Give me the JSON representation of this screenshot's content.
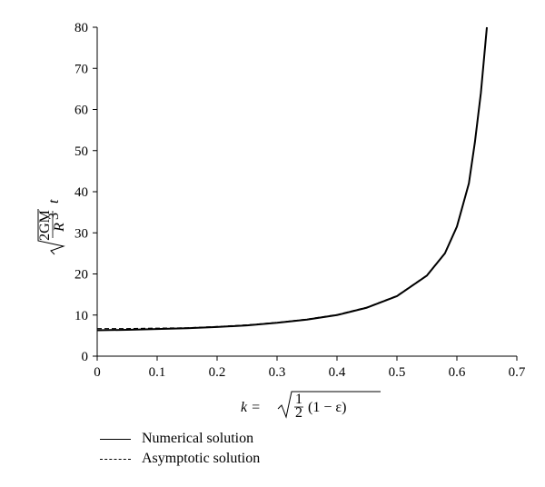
{
  "chart_data": {
    "type": "line",
    "xlabel": "k = √(½ (1 − ε))",
    "xlabel_parts": {
      "lhs": "k = ",
      "frac_num": "1",
      "frac_den": "2",
      "paren": "(1 − ε)"
    },
    "ylabel": "√(2GM/R³) t",
    "ylabel_parts": {
      "num": "2GM",
      "den": "R",
      "den_exp": "3",
      "var": "t"
    },
    "xlim": [
      0,
      0.7
    ],
    "ylim": [
      0,
      80
    ],
    "x_ticks": [
      "0",
      "0.1",
      "0.2",
      "0.3",
      "0.4",
      "0.5",
      "0.6",
      "0.7"
    ],
    "y_ticks": [
      "0",
      "10",
      "20",
      "30",
      "40",
      "50",
      "60",
      "70",
      "80"
    ],
    "grid": false,
    "legend_position": "bottom-left, below plot",
    "series": [
      {
        "name": "Numerical solution",
        "style": "solid",
        "x": [
          0,
          0.05,
          0.1,
          0.15,
          0.2,
          0.25,
          0.3,
          0.35,
          0.4,
          0.45,
          0.5,
          0.55,
          0.58,
          0.6,
          0.62,
          0.63,
          0.64,
          0.65
        ],
        "y": [
          6.3,
          6.4,
          6.6,
          6.8,
          7.1,
          7.5,
          8.1,
          8.9,
          10.0,
          11.8,
          14.6,
          19.6,
          25.0,
          31.5,
          42.0,
          52.0,
          64.0,
          80.0
        ]
      },
      {
        "name": "Asymptotic solution",
        "style": "dashed",
        "x": [
          0,
          0.05,
          0.1,
          0.15,
          0.2,
          0.25,
          0.3,
          0.35,
          0.4,
          0.45,
          0.5,
          0.55,
          0.58,
          0.6,
          0.62,
          0.63,
          0.64,
          0.65
        ],
        "y": [
          6.7,
          6.7,
          6.8,
          6.9,
          7.2,
          7.6,
          8.2,
          9.0,
          10.1,
          11.9,
          14.7,
          19.7,
          25.1,
          31.6,
          42.1,
          52.1,
          64.1,
          80.0
        ]
      }
    ]
  },
  "legend": {
    "items": [
      {
        "label": "Numerical solution",
        "style": "solid"
      },
      {
        "label": "Asymptotic solution",
        "style": "dashed"
      }
    ]
  }
}
